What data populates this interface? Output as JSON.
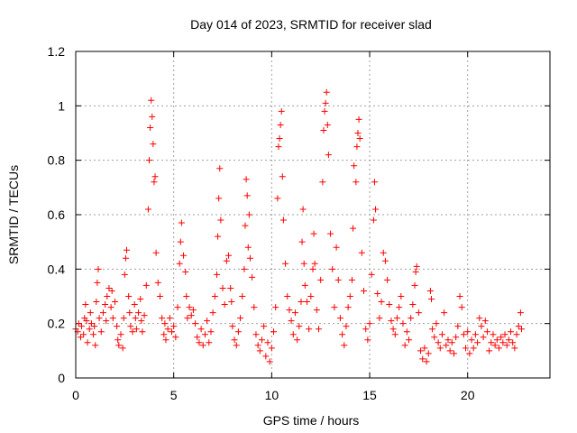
{
  "chart_data": {
    "type": "scatter",
    "title": "Day 014 of 2023, SRMTID for receiver slad",
    "xlabel": "GPS time / hours",
    "ylabel": "SRMTID / TECUs",
    "xlim": [
      0,
      24.2
    ],
    "ylim": [
      0,
      1.2
    ],
    "xticks": [
      0,
      5,
      10,
      15,
      20
    ],
    "xtick_labels": [
      "0",
      "5",
      "10",
      "15",
      "20"
    ],
    "yticks": [
      0,
      0.2,
      0.4,
      0.6,
      0.8,
      1.0,
      1.2
    ],
    "ytick_labels": [
      "0",
      "0.2",
      "0.4",
      "0.6",
      "0.8",
      "1",
      "1.2"
    ],
    "grid": true,
    "marker": "+",
    "marker_color": "#ff0000",
    "series": [
      {
        "name": "SRMTID",
        "points": [
          [
            0.0,
            0.18
          ],
          [
            0.1,
            0.17
          ],
          [
            0.15,
            0.2
          ],
          [
            0.25,
            0.15
          ],
          [
            0.3,
            0.19
          ],
          [
            0.4,
            0.16
          ],
          [
            0.45,
            0.22
          ],
          [
            0.5,
            0.27
          ],
          [
            0.55,
            0.21
          ],
          [
            0.6,
            0.13
          ],
          [
            0.7,
            0.18
          ],
          [
            0.75,
            0.24
          ],
          [
            0.8,
            0.2
          ],
          [
            0.9,
            0.16
          ],
          [
            0.95,
            0.19
          ],
          [
            1.0,
            0.12
          ],
          [
            1.05,
            0.28
          ],
          [
            1.1,
            0.35
          ],
          [
            1.15,
            0.4
          ],
          [
            1.2,
            0.22
          ],
          [
            1.3,
            0.17
          ],
          [
            1.4,
            0.24
          ],
          [
            1.5,
            0.27
          ],
          [
            1.55,
            0.21
          ],
          [
            1.6,
            0.3
          ],
          [
            1.7,
            0.33
          ],
          [
            1.8,
            0.26
          ],
          [
            1.85,
            0.32
          ],
          [
            1.9,
            0.22
          ],
          [
            2.0,
            0.28
          ],
          [
            2.1,
            0.19
          ],
          [
            2.15,
            0.14
          ],
          [
            2.2,
            0.12
          ],
          [
            2.3,
            0.16
          ],
          [
            2.4,
            0.11
          ],
          [
            2.45,
            0.22
          ],
          [
            2.5,
            0.38
          ],
          [
            2.55,
            0.44
          ],
          [
            2.6,
            0.47
          ],
          [
            2.7,
            0.3
          ],
          [
            2.75,
            0.24
          ],
          [
            2.8,
            0.19
          ],
          [
            2.9,
            0.17
          ],
          [
            3.0,
            0.27
          ],
          [
            3.05,
            0.22
          ],
          [
            3.1,
            0.18
          ],
          [
            3.2,
            0.24
          ],
          [
            3.3,
            0.29
          ],
          [
            3.35,
            0.21
          ],
          [
            3.4,
            0.17
          ],
          [
            3.5,
            0.23
          ],
          [
            3.6,
            0.34
          ],
          [
            3.7,
            0.62
          ],
          [
            3.75,
            0.8
          ],
          [
            3.8,
            0.92
          ],
          [
            3.85,
            1.02
          ],
          [
            3.9,
            0.96
          ],
          [
            3.95,
            0.86
          ],
          [
            4.0,
            0.72
          ],
          [
            4.05,
            0.74
          ],
          [
            4.1,
            0.46
          ],
          [
            4.2,
            0.35
          ],
          [
            4.3,
            0.3
          ],
          [
            4.4,
            0.22
          ],
          [
            4.5,
            0.16
          ],
          [
            4.55,
            0.2
          ],
          [
            4.6,
            0.14
          ],
          [
            4.7,
            0.18
          ],
          [
            4.8,
            0.22
          ],
          [
            4.9,
            0.17
          ],
          [
            5.0,
            0.19
          ],
          [
            5.1,
            0.15
          ],
          [
            5.2,
            0.26
          ],
          [
            5.3,
            0.42
          ],
          [
            5.35,
            0.5
          ],
          [
            5.4,
            0.57
          ],
          [
            5.5,
            0.45
          ],
          [
            5.6,
            0.39
          ],
          [
            5.65,
            0.3
          ],
          [
            5.7,
            0.22
          ],
          [
            5.8,
            0.26
          ],
          [
            5.9,
            0.23
          ],
          [
            6.0,
            0.25
          ],
          [
            6.1,
            0.2
          ],
          [
            6.2,
            0.15
          ],
          [
            6.3,
            0.13
          ],
          [
            6.4,
            0.18
          ],
          [
            6.5,
            0.12
          ],
          [
            6.6,
            0.16
          ],
          [
            6.7,
            0.21
          ],
          [
            6.8,
            0.13
          ],
          [
            6.9,
            0.17
          ],
          [
            7.0,
            0.24
          ],
          [
            7.1,
            0.3
          ],
          [
            7.2,
            0.38
          ],
          [
            7.25,
            0.52
          ],
          [
            7.3,
            0.66
          ],
          [
            7.35,
            0.77
          ],
          [
            7.4,
            0.58
          ],
          [
            7.5,
            0.33
          ],
          [
            7.6,
            0.27
          ],
          [
            7.7,
            0.43
          ],
          [
            7.8,
            0.45
          ],
          [
            7.9,
            0.33
          ],
          [
            7.95,
            0.28
          ],
          [
            8.0,
            0.19
          ],
          [
            8.1,
            0.14
          ],
          [
            8.2,
            0.12
          ],
          [
            8.3,
            0.17
          ],
          [
            8.4,
            0.22
          ],
          [
            8.5,
            0.3
          ],
          [
            8.6,
            0.4
          ],
          [
            8.65,
            0.56
          ],
          [
            8.7,
            0.73
          ],
          [
            8.75,
            0.67
          ],
          [
            8.8,
            0.48
          ],
          [
            8.85,
            0.6
          ],
          [
            8.9,
            0.44
          ],
          [
            9.0,
            0.37
          ],
          [
            9.1,
            0.26
          ],
          [
            9.2,
            0.16
          ],
          [
            9.3,
            0.12
          ],
          [
            9.4,
            0.1
          ],
          [
            9.5,
            0.14
          ],
          [
            9.6,
            0.19
          ],
          [
            9.7,
            0.08
          ],
          [
            9.8,
            0.13
          ],
          [
            9.9,
            0.06
          ],
          [
            10.0,
            0.11
          ],
          [
            10.1,
            0.17
          ],
          [
            10.2,
            0.26
          ],
          [
            10.3,
            0.66
          ],
          [
            10.35,
            0.85
          ],
          [
            10.4,
            0.88
          ],
          [
            10.45,
            0.93
          ],
          [
            10.5,
            0.98
          ],
          [
            10.55,
            0.74
          ],
          [
            10.6,
            0.58
          ],
          [
            10.7,
            0.42
          ],
          [
            10.8,
            0.3
          ],
          [
            10.9,
            0.25
          ],
          [
            11.0,
            0.21
          ],
          [
            11.1,
            0.16
          ],
          [
            11.2,
            0.24
          ],
          [
            11.3,
            0.14
          ],
          [
            11.4,
            0.19
          ],
          [
            11.5,
            0.28
          ],
          [
            11.55,
            0.5
          ],
          [
            11.6,
            0.62
          ],
          [
            11.65,
            0.42
          ],
          [
            11.7,
            0.34
          ],
          [
            11.8,
            0.28
          ],
          [
            11.9,
            0.18
          ],
          [
            12.0,
            0.3
          ],
          [
            12.1,
            0.4
          ],
          [
            12.15,
            0.53
          ],
          [
            12.2,
            0.42
          ],
          [
            12.3,
            0.25
          ],
          [
            12.4,
            0.18
          ],
          [
            12.5,
            0.36
          ],
          [
            12.6,
            0.72
          ],
          [
            12.65,
            0.91
          ],
          [
            12.7,
            0.98
          ],
          [
            12.75,
            1.01
          ],
          [
            12.8,
            1.05
          ],
          [
            12.85,
            0.93
          ],
          [
            12.9,
            0.82
          ],
          [
            13.0,
            0.53
          ],
          [
            13.1,
            0.4
          ],
          [
            13.2,
            0.26
          ],
          [
            13.3,
            0.48
          ],
          [
            13.4,
            0.36
          ],
          [
            13.5,
            0.22
          ],
          [
            13.6,
            0.16
          ],
          [
            13.7,
            0.12
          ],
          [
            13.8,
            0.19
          ],
          [
            13.9,
            0.26
          ],
          [
            14.0,
            0.3
          ],
          [
            14.1,
            0.36
          ],
          [
            14.15,
            0.55
          ],
          [
            14.2,
            0.78
          ],
          [
            14.3,
            0.72
          ],
          [
            14.35,
            0.85
          ],
          [
            14.4,
            0.9
          ],
          [
            14.45,
            0.95
          ],
          [
            14.5,
            0.88
          ],
          [
            14.6,
            0.46
          ],
          [
            14.7,
            0.32
          ],
          [
            14.8,
            0.18
          ],
          [
            14.9,
            0.14
          ],
          [
            15.0,
            0.2
          ],
          [
            15.1,
            0.38
          ],
          [
            15.2,
            0.58
          ],
          [
            15.25,
            0.72
          ],
          [
            15.3,
            0.62
          ],
          [
            15.4,
            0.31
          ],
          [
            15.5,
            0.22
          ],
          [
            15.6,
            0.28
          ],
          [
            15.7,
            0.46
          ],
          [
            15.8,
            0.43
          ],
          [
            15.9,
            0.36
          ],
          [
            16.0,
            0.27
          ],
          [
            16.1,
            0.21
          ],
          [
            16.2,
            0.18
          ],
          [
            16.3,
            0.16
          ],
          [
            16.4,
            0.22
          ],
          [
            16.5,
            0.26
          ],
          [
            16.6,
            0.3
          ],
          [
            16.7,
            0.2
          ],
          [
            16.8,
            0.12
          ],
          [
            16.9,
            0.17
          ],
          [
            17.0,
            0.14
          ],
          [
            17.1,
            0.22
          ],
          [
            17.2,
            0.27
          ],
          [
            17.3,
            0.34
          ],
          [
            17.35,
            0.39
          ],
          [
            17.4,
            0.41
          ],
          [
            17.5,
            0.24
          ],
          [
            17.6,
            0.1
          ],
          [
            17.7,
            0.07
          ],
          [
            17.8,
            0.11
          ],
          [
            17.9,
            0.06
          ],
          [
            18.0,
            0.09
          ],
          [
            18.1,
            0.32
          ],
          [
            18.15,
            0.29
          ],
          [
            18.2,
            0.18
          ],
          [
            18.3,
            0.15
          ],
          [
            18.4,
            0.2
          ],
          [
            18.5,
            0.13
          ],
          [
            18.6,
            0.11
          ],
          [
            18.7,
            0.16
          ],
          [
            18.8,
            0.24
          ],
          [
            18.9,
            0.12
          ],
          [
            19.0,
            0.14
          ],
          [
            19.1,
            0.1
          ],
          [
            19.2,
            0.13
          ],
          [
            19.3,
            0.09
          ],
          [
            19.4,
            0.15
          ],
          [
            19.5,
            0.19
          ],
          [
            19.6,
            0.3
          ],
          [
            19.7,
            0.26
          ],
          [
            19.8,
            0.16
          ],
          [
            19.9,
            0.11
          ],
          [
            20.0,
            0.17
          ],
          [
            20.1,
            0.09
          ],
          [
            20.2,
            0.14
          ],
          [
            20.3,
            0.11
          ],
          [
            20.4,
            0.16
          ],
          [
            20.5,
            0.13
          ],
          [
            20.6,
            0.22
          ],
          [
            20.7,
            0.19
          ],
          [
            20.8,
            0.15
          ],
          [
            20.9,
            0.21
          ],
          [
            21.0,
            0.17
          ],
          [
            21.1,
            0.1
          ],
          [
            21.2,
            0.13
          ],
          [
            21.3,
            0.16
          ],
          [
            21.4,
            0.12
          ],
          [
            21.5,
            0.14
          ],
          [
            21.6,
            0.11
          ],
          [
            21.7,
            0.15
          ],
          [
            21.8,
            0.13
          ],
          [
            21.9,
            0.16
          ],
          [
            22.0,
            0.12
          ],
          [
            22.1,
            0.14
          ],
          [
            22.2,
            0.17
          ],
          [
            22.3,
            0.13
          ],
          [
            22.4,
            0.11
          ],
          [
            22.5,
            0.16
          ],
          [
            22.6,
            0.19
          ],
          [
            22.7,
            0.24
          ],
          [
            22.75,
            0.18
          ]
        ]
      }
    ]
  }
}
